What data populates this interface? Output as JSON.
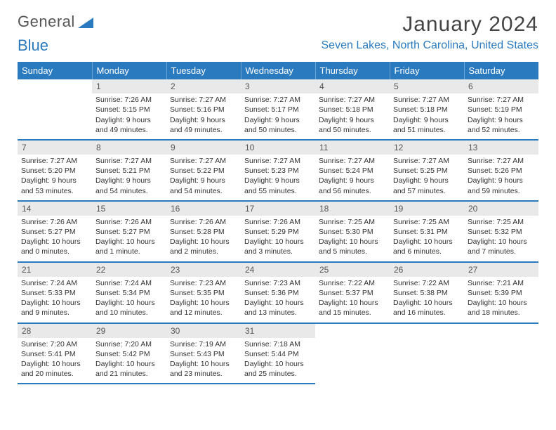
{
  "logo": {
    "part1": "General",
    "part2": "Blue",
    "triangle_color": "#2a7abf"
  },
  "title": "January 2024",
  "location": "Seven Lakes, North Carolina, United States",
  "colors": {
    "header_bg": "#2a7abf",
    "header_text": "#ffffff",
    "row_border": "#2a7abf",
    "daynum_bg": "#e9e9e9",
    "text": "#333333"
  },
  "weekdays": [
    "Sunday",
    "Monday",
    "Tuesday",
    "Wednesday",
    "Thursday",
    "Friday",
    "Saturday"
  ],
  "weeks": [
    [
      {
        "blank": true
      },
      {
        "n": "1",
        "sr": "Sunrise: 7:26 AM",
        "ss": "Sunset: 5:15 PM",
        "dl": "Daylight: 9 hours and 49 minutes."
      },
      {
        "n": "2",
        "sr": "Sunrise: 7:27 AM",
        "ss": "Sunset: 5:16 PM",
        "dl": "Daylight: 9 hours and 49 minutes."
      },
      {
        "n": "3",
        "sr": "Sunrise: 7:27 AM",
        "ss": "Sunset: 5:17 PM",
        "dl": "Daylight: 9 hours and 50 minutes."
      },
      {
        "n": "4",
        "sr": "Sunrise: 7:27 AM",
        "ss": "Sunset: 5:18 PM",
        "dl": "Daylight: 9 hours and 50 minutes."
      },
      {
        "n": "5",
        "sr": "Sunrise: 7:27 AM",
        "ss": "Sunset: 5:18 PM",
        "dl": "Daylight: 9 hours and 51 minutes."
      },
      {
        "n": "6",
        "sr": "Sunrise: 7:27 AM",
        "ss": "Sunset: 5:19 PM",
        "dl": "Daylight: 9 hours and 52 minutes."
      }
    ],
    [
      {
        "n": "7",
        "sr": "Sunrise: 7:27 AM",
        "ss": "Sunset: 5:20 PM",
        "dl": "Daylight: 9 hours and 53 minutes."
      },
      {
        "n": "8",
        "sr": "Sunrise: 7:27 AM",
        "ss": "Sunset: 5:21 PM",
        "dl": "Daylight: 9 hours and 54 minutes."
      },
      {
        "n": "9",
        "sr": "Sunrise: 7:27 AM",
        "ss": "Sunset: 5:22 PM",
        "dl": "Daylight: 9 hours and 54 minutes."
      },
      {
        "n": "10",
        "sr": "Sunrise: 7:27 AM",
        "ss": "Sunset: 5:23 PM",
        "dl": "Daylight: 9 hours and 55 minutes."
      },
      {
        "n": "11",
        "sr": "Sunrise: 7:27 AM",
        "ss": "Sunset: 5:24 PM",
        "dl": "Daylight: 9 hours and 56 minutes."
      },
      {
        "n": "12",
        "sr": "Sunrise: 7:27 AM",
        "ss": "Sunset: 5:25 PM",
        "dl": "Daylight: 9 hours and 57 minutes."
      },
      {
        "n": "13",
        "sr": "Sunrise: 7:27 AM",
        "ss": "Sunset: 5:26 PM",
        "dl": "Daylight: 9 hours and 59 minutes."
      }
    ],
    [
      {
        "n": "14",
        "sr": "Sunrise: 7:26 AM",
        "ss": "Sunset: 5:27 PM",
        "dl": "Daylight: 10 hours and 0 minutes."
      },
      {
        "n": "15",
        "sr": "Sunrise: 7:26 AM",
        "ss": "Sunset: 5:27 PM",
        "dl": "Daylight: 10 hours and 1 minute."
      },
      {
        "n": "16",
        "sr": "Sunrise: 7:26 AM",
        "ss": "Sunset: 5:28 PM",
        "dl": "Daylight: 10 hours and 2 minutes."
      },
      {
        "n": "17",
        "sr": "Sunrise: 7:26 AM",
        "ss": "Sunset: 5:29 PM",
        "dl": "Daylight: 10 hours and 3 minutes."
      },
      {
        "n": "18",
        "sr": "Sunrise: 7:25 AM",
        "ss": "Sunset: 5:30 PM",
        "dl": "Daylight: 10 hours and 5 minutes."
      },
      {
        "n": "19",
        "sr": "Sunrise: 7:25 AM",
        "ss": "Sunset: 5:31 PM",
        "dl": "Daylight: 10 hours and 6 minutes."
      },
      {
        "n": "20",
        "sr": "Sunrise: 7:25 AM",
        "ss": "Sunset: 5:32 PM",
        "dl": "Daylight: 10 hours and 7 minutes."
      }
    ],
    [
      {
        "n": "21",
        "sr": "Sunrise: 7:24 AM",
        "ss": "Sunset: 5:33 PM",
        "dl": "Daylight: 10 hours and 9 minutes."
      },
      {
        "n": "22",
        "sr": "Sunrise: 7:24 AM",
        "ss": "Sunset: 5:34 PM",
        "dl": "Daylight: 10 hours and 10 minutes."
      },
      {
        "n": "23",
        "sr": "Sunrise: 7:23 AM",
        "ss": "Sunset: 5:35 PM",
        "dl": "Daylight: 10 hours and 12 minutes."
      },
      {
        "n": "24",
        "sr": "Sunrise: 7:23 AM",
        "ss": "Sunset: 5:36 PM",
        "dl": "Daylight: 10 hours and 13 minutes."
      },
      {
        "n": "25",
        "sr": "Sunrise: 7:22 AM",
        "ss": "Sunset: 5:37 PM",
        "dl": "Daylight: 10 hours and 15 minutes."
      },
      {
        "n": "26",
        "sr": "Sunrise: 7:22 AM",
        "ss": "Sunset: 5:38 PM",
        "dl": "Daylight: 10 hours and 16 minutes."
      },
      {
        "n": "27",
        "sr": "Sunrise: 7:21 AM",
        "ss": "Sunset: 5:39 PM",
        "dl": "Daylight: 10 hours and 18 minutes."
      }
    ],
    [
      {
        "n": "28",
        "sr": "Sunrise: 7:20 AM",
        "ss": "Sunset: 5:41 PM",
        "dl": "Daylight: 10 hours and 20 minutes."
      },
      {
        "n": "29",
        "sr": "Sunrise: 7:20 AM",
        "ss": "Sunset: 5:42 PM",
        "dl": "Daylight: 10 hours and 21 minutes."
      },
      {
        "n": "30",
        "sr": "Sunrise: 7:19 AM",
        "ss": "Sunset: 5:43 PM",
        "dl": "Daylight: 10 hours and 23 minutes."
      },
      {
        "n": "31",
        "sr": "Sunrise: 7:18 AM",
        "ss": "Sunset: 5:44 PM",
        "dl": "Daylight: 10 hours and 25 minutes."
      },
      {
        "blank": true
      },
      {
        "blank": true
      },
      {
        "blank": true
      }
    ]
  ]
}
